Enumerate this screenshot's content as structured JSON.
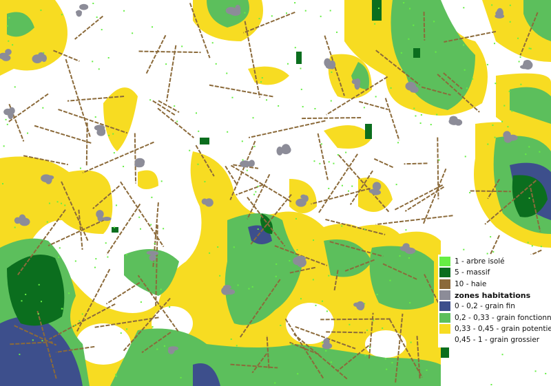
{
  "legend": {
    "items": [
      {
        "label": "1 - arbre isolé",
        "color": "#66ee44"
      },
      {
        "label": "5 - massif",
        "color": "#0b6e1e"
      },
      {
        "label": "10 - haie",
        "color": "#8b6a3a"
      },
      {
        "label": "zones habitations",
        "color": "#8c8c98",
        "bold": true
      },
      {
        "label": "0 - 0,2 - grain fin",
        "color": "#3d4f8c"
      },
      {
        "label": "0,2 - 0,33 - grain fonctionnel",
        "color": "#5cbf5c"
      },
      {
        "label": "0,33 - 0,45 - grain potentiel",
        "color": "#f7dc22"
      },
      {
        "label": "0,45 - 1 - grain grossier",
        "color": "#ffffff"
      }
    ]
  }
}
